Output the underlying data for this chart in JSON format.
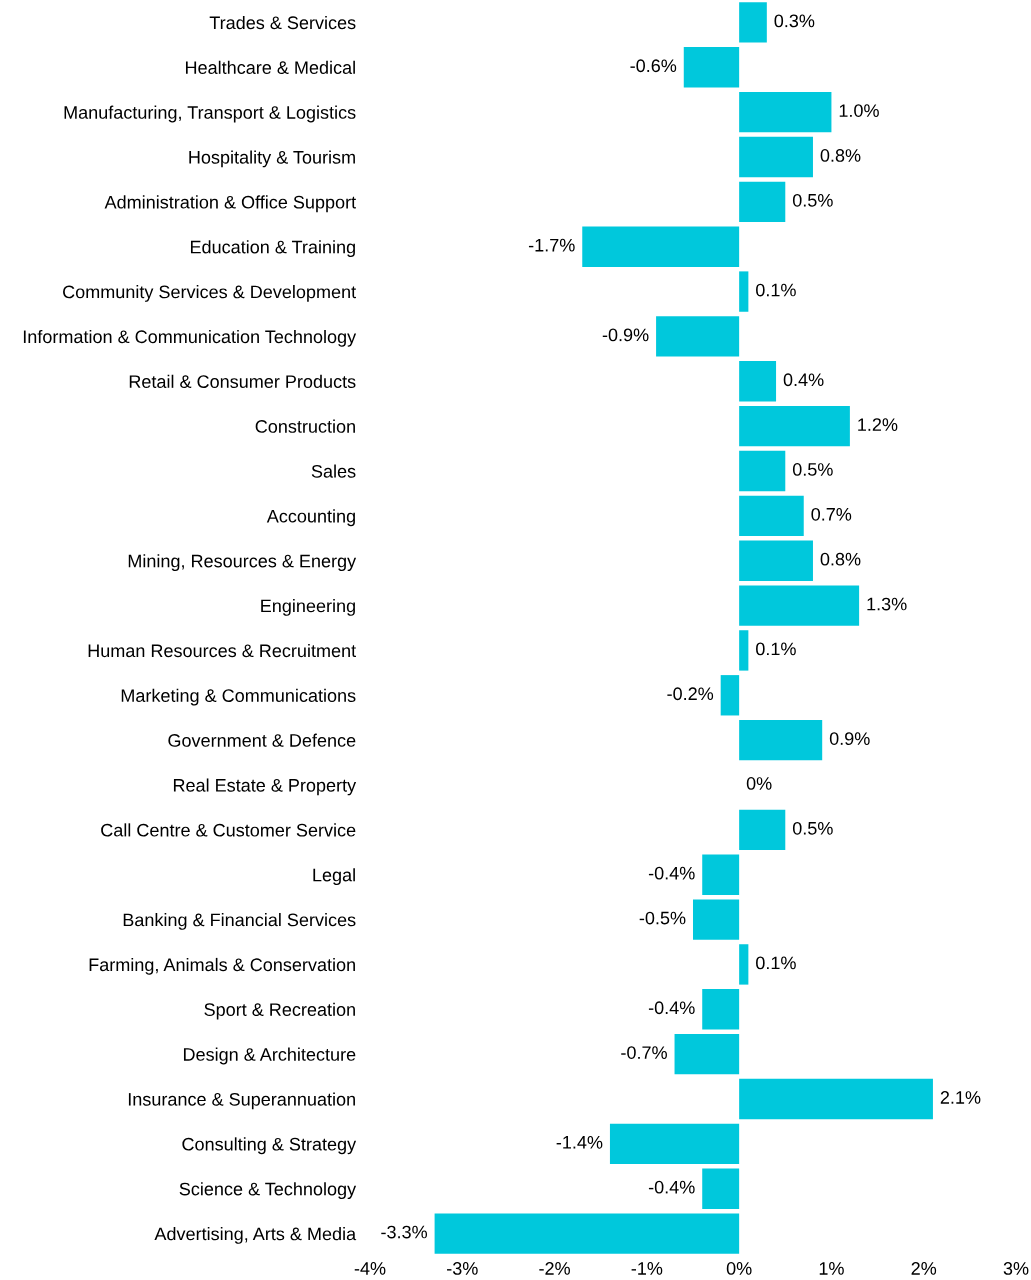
{
  "chart_data": {
    "type": "bar",
    "orientation": "horizontal",
    "color": "#00c8dc",
    "categories": [
      "Trades & Services",
      "Healthcare & Medical",
      "Manufacturing, Transport & Logistics",
      "Hospitality & Tourism",
      "Administration & Office Support",
      "Education & Training",
      "Community Services & Development",
      "Information & Communication Technology",
      "Retail & Consumer Products",
      "Construction",
      "Sales",
      "Accounting",
      "Mining, Resources & Energy",
      "Engineering",
      "Human Resources & Recruitment",
      "Marketing & Communications",
      "Government & Defence",
      "Real Estate & Property",
      "Call Centre & Customer Service",
      "Legal",
      "Banking & Financial Services",
      "Farming, Animals & Conservation",
      "Sport & Recreation",
      "Design & Architecture",
      "Insurance & Superannuation",
      "Consulting & Strategy",
      "Science & Technology",
      "Advertising, Arts & Media"
    ],
    "values": [
      0.3,
      -0.6,
      1.0,
      0.8,
      0.5,
      -1.7,
      0.1,
      -0.9,
      0.4,
      1.2,
      0.5,
      0.7,
      0.8,
      1.3,
      0.1,
      -0.2,
      0.9,
      0,
      0.5,
      -0.4,
      -0.5,
      0.1,
      -0.4,
      -0.7,
      2.1,
      -1.4,
      -0.4,
      -3.3
    ],
    "value_labels": [
      "0.3%",
      "-0.6%",
      "1.0%",
      "0.8%",
      "0.5%",
      "-1.7%",
      "0.1%",
      "-0.9%",
      "0.4%",
      "1.2%",
      "0.5%",
      "0.7%",
      "0.8%",
      "1.3%",
      "0.1%",
      "-0.2%",
      "0.9%",
      "0%",
      "0.5%",
      "-0.4%",
      "-0.5%",
      "0.1%",
      "-0.4%",
      "-0.7%",
      "2.1%",
      "-1.4%",
      "-0.4%",
      "-3.3%"
    ],
    "xlim": [
      -4,
      3
    ],
    "xticks": [
      {
        "value": -4,
        "label": "-4%"
      },
      {
        "value": -3,
        "label": "-3%"
      },
      {
        "value": -2,
        "label": "-2%"
      },
      {
        "value": -1,
        "label": "-1%"
      },
      {
        "value": 0,
        "label": "0%"
      },
      {
        "value": 1,
        "label": "1%"
      },
      {
        "value": 2,
        "label": "2%"
      },
      {
        "value": 3,
        "label": "3%"
      }
    ],
    "grid": false,
    "legend": false
  }
}
